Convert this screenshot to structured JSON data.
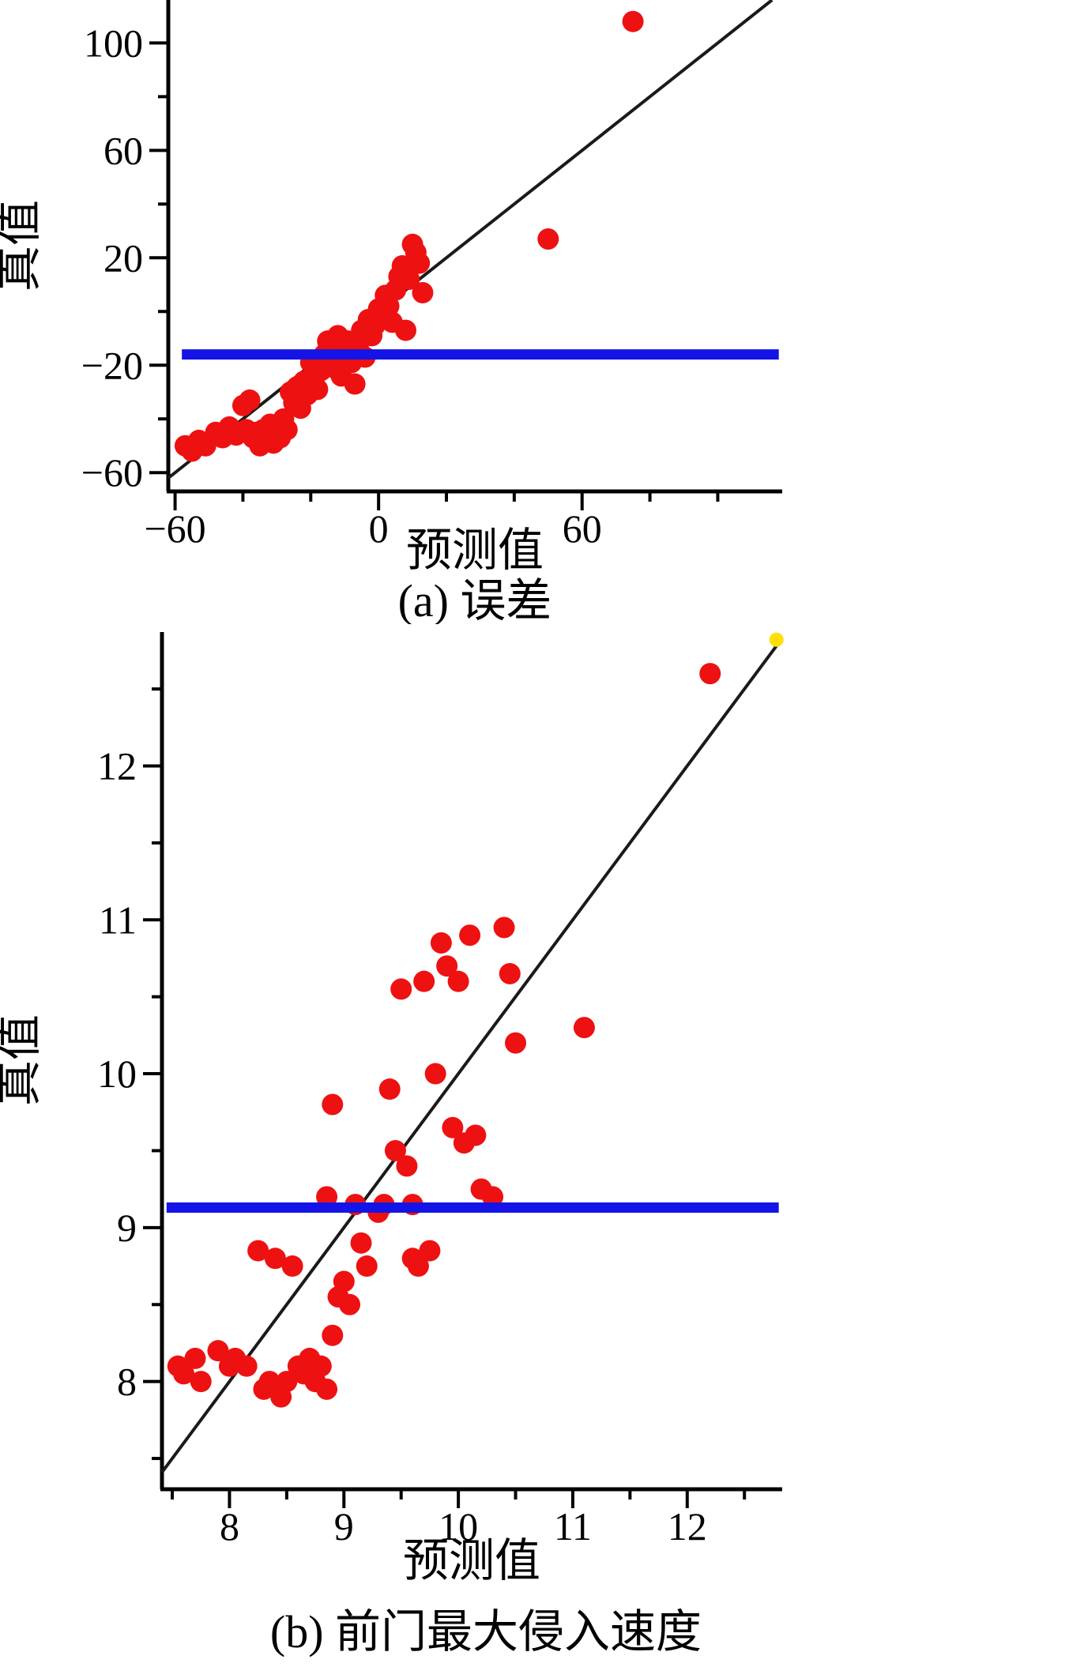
{
  "colors": {
    "point": "#ee1111",
    "identity_line": "#1a1a1a",
    "mean_line": "#1414e6",
    "axis": "#000000",
    "corner_marker": "#ffe000"
  },
  "chart_data": [
    {
      "type": "scatter",
      "caption": "(a) 误差",
      "xlabel": "预测值",
      "ylabel": "真值",
      "xlim": [
        -62,
        119
      ],
      "ylim": [
        -67,
        116
      ],
      "xticks": [
        -60,
        0,
        60
      ],
      "xtick_labels": [
        "−60",
        "0",
        "60"
      ],
      "yticks": [
        -60,
        -20,
        20,
        60,
        100
      ],
      "ytick_labels": [
        "−60",
        "−20",
        "20",
        "60",
        "100"
      ],
      "xticks_minor": [
        -40,
        -20,
        20,
        40,
        80,
        100
      ],
      "yticks_minor": [
        -40,
        0,
        40,
        80
      ],
      "grid": false,
      "legend": "none",
      "identity_line": {
        "from": -62,
        "to": 116,
        "color": "#1a1a1a"
      },
      "hline": {
        "y": -16,
        "x_start": -58,
        "x_end": 118,
        "color": "#1414e6"
      },
      "point_color": "#ee1111",
      "points": [
        [
          -57,
          -50
        ],
        [
          -55,
          -52
        ],
        [
          -53,
          -48
        ],
        [
          -51,
          -50
        ],
        [
          -48,
          -45
        ],
        [
          -46,
          -47
        ],
        [
          -44,
          -43
        ],
        [
          -42,
          -46
        ],
        [
          -40,
          -35
        ],
        [
          -39,
          -44
        ],
        [
          -38,
          -33
        ],
        [
          -37,
          -47
        ],
        [
          -36,
          -45
        ],
        [
          -35,
          -50
        ],
        [
          -34,
          -44
        ],
        [
          -33,
          -47
        ],
        [
          -32,
          -42
        ],
        [
          -31,
          -49
        ],
        [
          -30,
          -45
        ],
        [
          -29,
          -47
        ],
        [
          -28,
          -40
        ],
        [
          -27,
          -44
        ],
        [
          -26,
          -30
        ],
        [
          -25,
          -34
        ],
        [
          -24,
          -28
        ],
        [
          -23,
          -36
        ],
        [
          -22,
          -26
        ],
        [
          -21,
          -31
        ],
        [
          -20,
          -19
        ],
        [
          -19,
          -25
        ],
        [
          -18,
          -29
        ],
        [
          -17,
          -22
        ],
        [
          -16,
          -16
        ],
        [
          -15,
          -11
        ],
        [
          -14,
          -13
        ],
        [
          -13,
          -21
        ],
        [
          -12,
          -9
        ],
        [
          -11,
          -24
        ],
        [
          -10,
          -15
        ],
        [
          -9,
          -11
        ],
        [
          -8,
          -19
        ],
        [
          -7,
          -27
        ],
        [
          -6,
          -13
        ],
        [
          -5,
          -7
        ],
        [
          -4,
          -17
        ],
        [
          -3,
          -3
        ],
        [
          -2,
          -9
        ],
        [
          -1,
          -5
        ],
        [
          0,
          1
        ],
        [
          1,
          -2
        ],
        [
          2,
          6
        ],
        [
          3,
          2
        ],
        [
          4,
          -4
        ],
        [
          5,
          8
        ],
        [
          6,
          13
        ],
        [
          7,
          17
        ],
        [
          8,
          -7
        ],
        [
          9,
          12
        ],
        [
          10,
          25
        ],
        [
          11,
          22
        ],
        [
          12,
          18
        ],
        [
          13,
          7
        ],
        [
          50,
          27
        ],
        [
          75,
          108
        ]
      ]
    },
    {
      "type": "scatter",
      "caption": "(b) 前门最大侵入速度",
      "xlabel": "预测值",
      "ylabel": "真值",
      "xlim": [
        7.41,
        12.83
      ],
      "ylim": [
        7.3,
        12.87
      ],
      "xticks": [
        8,
        9,
        10,
        11,
        12
      ],
      "xtick_labels": [
        "8",
        "9",
        "10",
        "11",
        "12"
      ],
      "yticks": [
        8,
        9,
        10,
        11,
        12
      ],
      "ytick_labels": [
        "8",
        "9",
        "10",
        "11",
        "12"
      ],
      "xticks_minor": [
        7.5,
        8.5,
        9.5,
        10.5,
        11.5,
        12.5
      ],
      "yticks_minor": [
        7.5,
        8.5,
        9.5,
        10.5,
        11.5,
        12.5
      ],
      "grid": false,
      "legend": "none",
      "identity_line": {
        "from": 7.41,
        "to": 12.83,
        "color": "#1a1a1a"
      },
      "hline": {
        "y": 9.13,
        "x_start": 7.45,
        "x_end": 12.8,
        "color": "#1414e6"
      },
      "corner_marker": {
        "x": 12.78,
        "y": 12.82,
        "color": "#ffe000"
      },
      "point_color": "#ee1111",
      "points": [
        [
          7.55,
          8.1
        ],
        [
          7.6,
          8.05
        ],
        [
          7.7,
          8.15
        ],
        [
          7.75,
          8.0
        ],
        [
          7.9,
          8.2
        ],
        [
          8.0,
          8.1
        ],
        [
          8.05,
          8.15
        ],
        [
          8.15,
          8.1
        ],
        [
          8.25,
          8.85
        ],
        [
          8.3,
          7.95
        ],
        [
          8.35,
          8.0
        ],
        [
          8.4,
          8.8
        ],
        [
          8.45,
          7.9
        ],
        [
          8.5,
          8.0
        ],
        [
          8.55,
          8.75
        ],
        [
          8.6,
          8.1
        ],
        [
          8.65,
          8.05
        ],
        [
          8.7,
          8.15
        ],
        [
          8.75,
          8.0
        ],
        [
          8.8,
          8.1
        ],
        [
          8.85,
          7.95
        ],
        [
          8.85,
          9.2
        ],
        [
          8.9,
          9.8
        ],
        [
          8.9,
          8.3
        ],
        [
          8.95,
          8.55
        ],
        [
          9.0,
          8.65
        ],
        [
          9.05,
          8.5
        ],
        [
          9.1,
          9.15
        ],
        [
          9.15,
          8.9
        ],
        [
          9.2,
          8.75
        ],
        [
          9.3,
          9.1
        ],
        [
          9.35,
          9.15
        ],
        [
          9.4,
          9.9
        ],
        [
          9.45,
          9.5
        ],
        [
          9.5,
          10.55
        ],
        [
          9.55,
          9.4
        ],
        [
          9.6,
          9.15
        ],
        [
          9.6,
          8.8
        ],
        [
          9.65,
          8.75
        ],
        [
          9.7,
          10.6
        ],
        [
          9.75,
          8.85
        ],
        [
          9.8,
          10.0
        ],
        [
          9.85,
          10.85
        ],
        [
          9.9,
          10.7
        ],
        [
          9.95,
          9.65
        ],
        [
          10.0,
          10.6
        ],
        [
          10.05,
          9.55
        ],
        [
          10.1,
          10.9
        ],
        [
          10.15,
          9.6
        ],
        [
          10.2,
          9.25
        ],
        [
          10.3,
          9.2
        ],
        [
          10.4,
          10.95
        ],
        [
          10.45,
          10.65
        ],
        [
          10.5,
          10.2
        ],
        [
          11.1,
          10.3
        ],
        [
          12.2,
          12.6
        ]
      ]
    }
  ]
}
